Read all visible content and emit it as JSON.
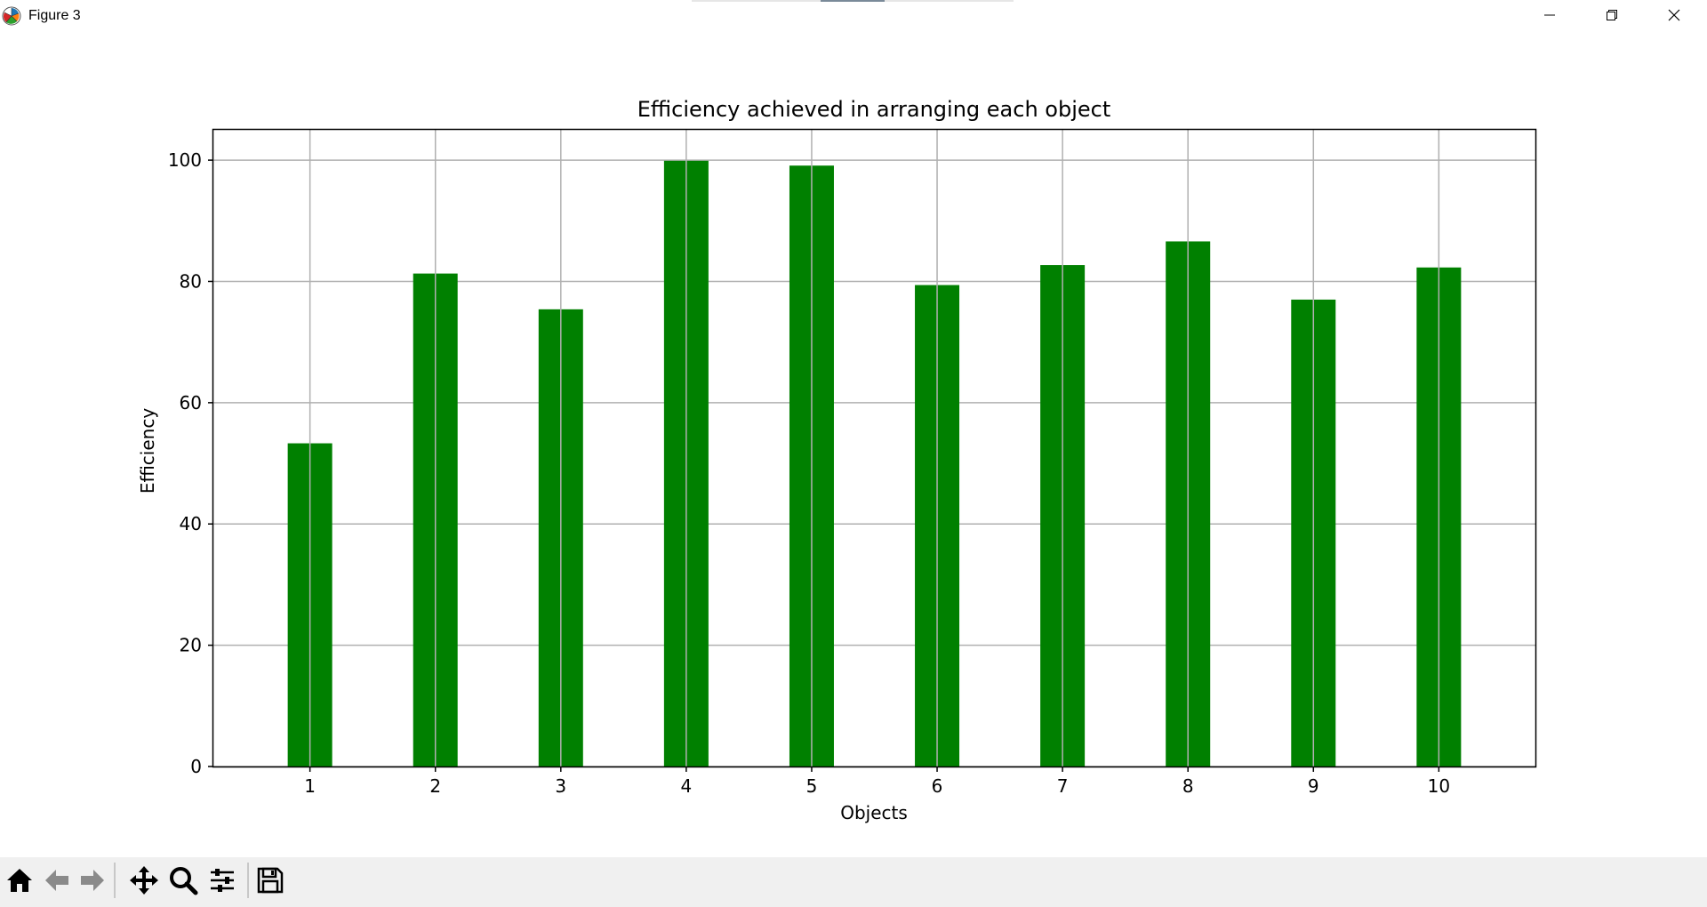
{
  "window": {
    "title": "Figure 3"
  },
  "toolbar": {
    "items": [
      "home-icon",
      "back-icon",
      "forward-icon",
      "pan-icon",
      "zoom-icon",
      "configure-subplots-icon",
      "save-icon"
    ]
  },
  "colors": {
    "bar": "#008000",
    "grid": "#b0b0b0",
    "axis": "#000000",
    "toolbar_bg": "#f0f0f0"
  },
  "chart_data": {
    "type": "bar",
    "title": "Efficiency achieved in arranging each object",
    "xlabel": "Objects",
    "ylabel": "Efficiency",
    "categories": [
      "1",
      "2",
      "3",
      "4",
      "5",
      "6",
      "7",
      "8",
      "9",
      "10"
    ],
    "values": [
      53.3,
      81.3,
      75.4,
      99.9,
      99.1,
      79.4,
      82.7,
      86.6,
      77.0,
      82.3
    ],
    "ylim": [
      0,
      105
    ],
    "yticks": [
      "0",
      "20",
      "40",
      "60",
      "80",
      "100"
    ],
    "grid": true,
    "legend": "none"
  }
}
